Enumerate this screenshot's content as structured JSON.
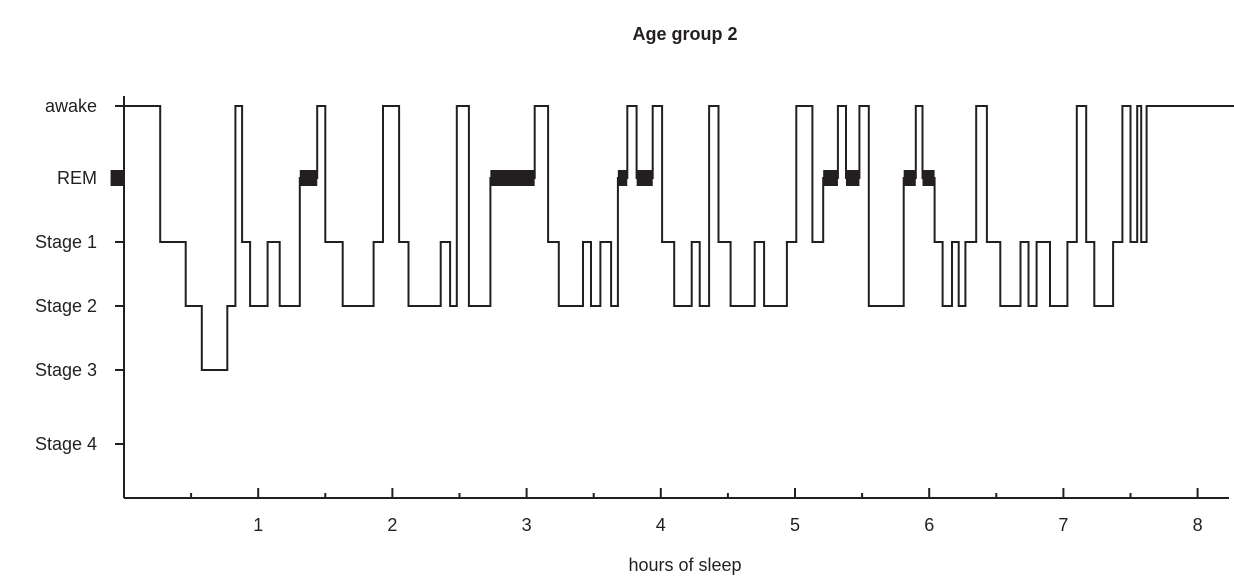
{
  "chart_data": {
    "type": "line",
    "title": "Age group 2",
    "xlabel": "hours of sleep",
    "ylabel": "",
    "xlim": [
      0,
      8
    ],
    "x_ticks": [
      1,
      2,
      3,
      4,
      5,
      6,
      7,
      8
    ],
    "x_tick_labels": [
      "1",
      "2",
      "3",
      "4",
      "5",
      "6",
      "7",
      "8"
    ],
    "x_minor_ticks": [
      0.5,
      1.5,
      2.5,
      3.5,
      4.5,
      5.5,
      6.5,
      7.5
    ],
    "y_categories": [
      "awake",
      "REM",
      "Stage 1",
      "Stage 2",
      "Stage 3",
      "Stage 4"
    ],
    "grid": false,
    "legend": "none",
    "color": "#231f20",
    "series": [
      {
        "points": [
          {
            "x": 0,
            "stage": "awake"
          },
          {
            "x": 0.27,
            "stage": "Stage 1"
          },
          {
            "x": 0.46,
            "stage": "Stage 2"
          },
          {
            "x": 0.58,
            "stage": "Stage 3"
          },
          {
            "x": 0.77,
            "stage": "Stage 2"
          },
          {
            "x": 0.83,
            "stage": "awake"
          },
          {
            "x": 0.88,
            "stage": "Stage 1"
          },
          {
            "x": 0.94,
            "stage": "Stage 2"
          },
          {
            "x": 1.07,
            "stage": "Stage 1"
          },
          {
            "x": 1.16,
            "stage": "Stage 2"
          },
          {
            "x": 1.31,
            "stage": "REM"
          },
          {
            "x": 1.44,
            "stage": "awake"
          },
          {
            "x": 1.5,
            "stage": "Stage 1"
          },
          {
            "x": 1.63,
            "stage": "Stage 2"
          },
          {
            "x": 1.86,
            "stage": "Stage 1"
          },
          {
            "x": 1.93,
            "stage": "awake"
          },
          {
            "x": 2.05,
            "stage": "Stage 1"
          },
          {
            "x": 2.12,
            "stage": "Stage 2"
          },
          {
            "x": 2.36,
            "stage": "Stage 1"
          },
          {
            "x": 2.43,
            "stage": "Stage 2"
          },
          {
            "x": 2.48,
            "stage": "awake"
          },
          {
            "x": 2.57,
            "stage": "Stage 2"
          },
          {
            "x": 2.73,
            "stage": "REM"
          },
          {
            "x": 3.06,
            "stage": "awake"
          },
          {
            "x": 3.16,
            "stage": "Stage 1"
          },
          {
            "x": 3.24,
            "stage": "Stage 2"
          },
          {
            "x": 3.42,
            "stage": "Stage 1"
          },
          {
            "x": 3.48,
            "stage": "Stage 2"
          },
          {
            "x": 3.55,
            "stage": "Stage 1"
          },
          {
            "x": 3.63,
            "stage": "Stage 2"
          },
          {
            "x": 3.68,
            "stage": "REM"
          },
          {
            "x": 3.75,
            "stage": "awake"
          },
          {
            "x": 3.82,
            "stage": "REM"
          },
          {
            "x": 3.94,
            "stage": "awake"
          },
          {
            "x": 4.01,
            "stage": "Stage 1"
          },
          {
            "x": 4.1,
            "stage": "Stage 2"
          },
          {
            "x": 4.23,
            "stage": "Stage 1"
          },
          {
            "x": 4.29,
            "stage": "Stage 2"
          },
          {
            "x": 4.36,
            "stage": "awake"
          },
          {
            "x": 4.43,
            "stage": "Stage 1"
          },
          {
            "x": 4.52,
            "stage": "Stage 2"
          },
          {
            "x": 4.7,
            "stage": "Stage 1"
          },
          {
            "x": 4.77,
            "stage": "Stage 2"
          },
          {
            "x": 4.94,
            "stage": "Stage 1"
          },
          {
            "x": 5.01,
            "stage": "awake"
          },
          {
            "x": 5.13,
            "stage": "Stage 1"
          },
          {
            "x": 5.21,
            "stage": "REM"
          },
          {
            "x": 5.32,
            "stage": "awake"
          },
          {
            "x": 5.38,
            "stage": "REM"
          },
          {
            "x": 5.48,
            "stage": "awake"
          },
          {
            "x": 5.55,
            "stage": "Stage 2"
          },
          {
            "x": 5.81,
            "stage": "REM"
          },
          {
            "x": 5.9,
            "stage": "awake"
          },
          {
            "x": 5.95,
            "stage": "REM"
          },
          {
            "x": 6.04,
            "stage": "Stage 1"
          },
          {
            "x": 6.1,
            "stage": "Stage 2"
          },
          {
            "x": 6.17,
            "stage": "Stage 1"
          },
          {
            "x": 6.22,
            "stage": "Stage 2"
          },
          {
            "x": 6.27,
            "stage": "Stage 1"
          },
          {
            "x": 6.35,
            "stage": "awake"
          },
          {
            "x": 6.43,
            "stage": "Stage 1"
          },
          {
            "x": 6.53,
            "stage": "Stage 2"
          },
          {
            "x": 6.68,
            "stage": "Stage 1"
          },
          {
            "x": 6.74,
            "stage": "Stage 2"
          },
          {
            "x": 6.8,
            "stage": "Stage 1"
          },
          {
            "x": 6.9,
            "stage": "Stage 2"
          },
          {
            "x": 7.03,
            "stage": "Stage 1"
          },
          {
            "x": 7.1,
            "stage": "awake"
          },
          {
            "x": 7.17,
            "stage": "Stage 1"
          },
          {
            "x": 7.23,
            "stage": "Stage 2"
          },
          {
            "x": 7.37,
            "stage": "Stage 1"
          },
          {
            "x": 7.44,
            "stage": "awake"
          },
          {
            "x": 7.5,
            "stage": "Stage 1"
          },
          {
            "x": 7.55,
            "stage": "awake"
          },
          {
            "x": 7.58,
            "stage": "Stage 1"
          },
          {
            "x": 7.62,
            "stage": "awake"
          },
          {
            "x": 8.54,
            "stage": "awake"
          }
        ]
      }
    ],
    "rem_periods": [
      {
        "start": -0.1,
        "end": 0
      },
      {
        "start": 1.31,
        "end": 1.44
      },
      {
        "start": 2.73,
        "end": 3.06
      },
      {
        "start": 3.68,
        "end": 3.75
      },
      {
        "start": 3.82,
        "end": 3.94
      },
      {
        "start": 5.21,
        "end": 5.32
      },
      {
        "start": 5.38,
        "end": 5.48
      },
      {
        "start": 5.81,
        "end": 5.9
      },
      {
        "start": 5.95,
        "end": 6.04
      }
    ]
  }
}
